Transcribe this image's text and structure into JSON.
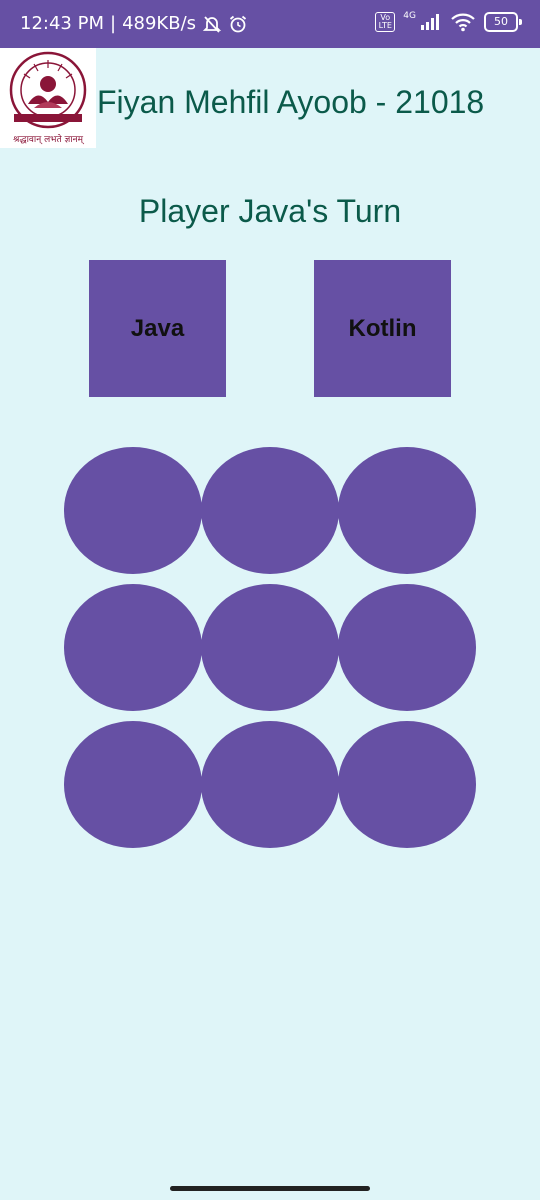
{
  "status_bar": {
    "time": "12:43 PM",
    "separator": "|",
    "speed": "489KB/s",
    "icons": [
      "silent-bell-icon",
      "alarm-icon",
      "volte-icon",
      "signal-4g-icon",
      "wifi-icon",
      "battery-icon"
    ],
    "volte_label": "Vo LTE",
    "network_type": "4G",
    "battery_level": "50",
    "bg_color": "#6650a4"
  },
  "header": {
    "title": "Fiyan Mehfil Ayoob - 21018",
    "logo_icon": "university-logo-icon",
    "logo_motto": "श्रद्धावान् लभते ज्ञानम्",
    "logo_ring_text": "AMRITA VISHWA VIDYAPEETHAM"
  },
  "game": {
    "status": "Player Java's Turn",
    "players": [
      {
        "label": "Java"
      },
      {
        "label": "Kotlin"
      }
    ],
    "board": [
      "",
      "",
      "",
      "",
      "",
      "",
      "",
      "",
      ""
    ]
  },
  "colors": {
    "background": "#dff5f8",
    "accent": "#6650a4",
    "title_text": "#0b5a4a"
  }
}
